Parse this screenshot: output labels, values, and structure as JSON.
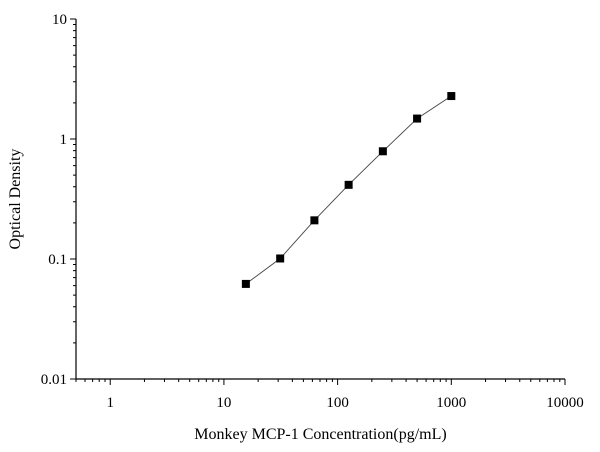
{
  "chart_data": {
    "type": "scatter",
    "title": "",
    "xlabel": "Monkey MCP-1 Concentration(pg/mL)",
    "ylabel": "Optical Density",
    "x_scale": "log",
    "y_scale": "log",
    "xlim": [
      0.5,
      10000
    ],
    "ylim": [
      0.01,
      10
    ],
    "x_ticks": [
      1,
      10,
      100,
      1000,
      10000
    ],
    "x_tick_labels": [
      "1",
      "10",
      "100",
      "1000",
      "10000"
    ],
    "y_ticks": [
      0.01,
      0.1,
      1,
      10
    ],
    "y_tick_labels": [
      "0.01",
      "0.1",
      "1",
      "10"
    ],
    "grid": false,
    "series": [
      {
        "x": [
          15.6,
          31.25,
          62.5,
          125,
          250,
          500,
          1000
        ],
        "y": [
          0.062,
          0.101,
          0.21,
          0.415,
          0.79,
          1.48,
          2.28
        ],
        "marker": "square",
        "line": true
      }
    ],
    "colors": {
      "marker": "#000000",
      "line": "#444444",
      "axis": "#000000"
    }
  }
}
